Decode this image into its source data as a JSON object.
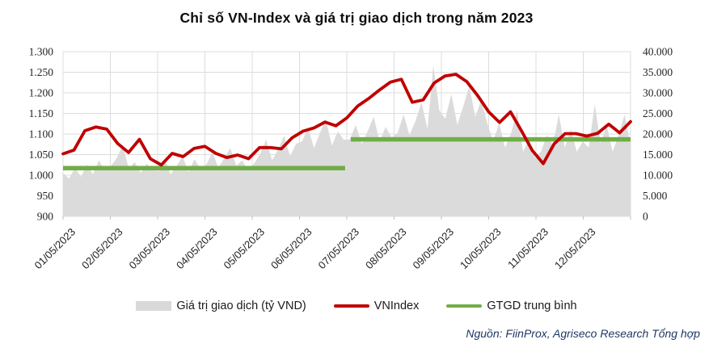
{
  "title": "Chỉ số VN-Index và giá trị giao dịch trong năm 2023",
  "source_note": "Nguồn: FiinProx, Agriseco Research Tổng hợp",
  "colors": {
    "vnindex_line": "#c00000",
    "volume_area": "#dbdbdb",
    "average_line": "#70ad47",
    "gridline": "#dcdcdc",
    "axis_text": "#1f1f1f",
    "source_text": "#203864"
  },
  "legend": [
    {
      "label": "Giá trị giao dịch (tỷ VND)",
      "type": "area",
      "color": "#d9d9d9"
    },
    {
      "label": "VNIndex",
      "type": "line",
      "color": "#c00000"
    },
    {
      "label": "GTGD trung bình",
      "type": "line",
      "color": "#70ad47"
    }
  ],
  "chart_data": {
    "type": "combo",
    "title": "Chỉ số VN-Index và giá trị giao dịch trong năm 2023",
    "x_axis": {
      "tick_labels": [
        "01/05/2023",
        "02/05/2023",
        "03/05/2023",
        "04/05/2023",
        "05/05/2023",
        "06/05/2023",
        "07/05/2023",
        "08/05/2023",
        "09/05/2023",
        "10/05/2023",
        "11/05/2023",
        "12/05/2023"
      ],
      "label_rotation_deg": -45
    },
    "y_axis_left": {
      "tick_labels": [
        "1.300",
        "1.250",
        "1.200",
        "1.150",
        "1.100",
        "1.050",
        "1.000",
        "950",
        "900"
      ],
      "min": 900,
      "max": 1300,
      "applies_to": "VNIndex"
    },
    "y_axis_right": {
      "tick_labels": [
        "40.000",
        "35.000",
        "30.000",
        "25.000",
        "20.000",
        "15.000",
        "10.000",
        "5.000",
        "0"
      ],
      "min": 0,
      "max": 40000,
      "applies_to": "Giá trị giao dịch (tỷ VND)"
    },
    "gridlines": {
      "horizontal": true,
      "vertical": true
    },
    "legend_position": "bottom",
    "series": [
      {
        "name": "Giá trị giao dịch (tỷ VND)",
        "type": "area",
        "axis": "right",
        "color": "#dbdbdb",
        "values": [
          10500,
          9200,
          11800,
          9600,
          12600,
          10200,
          13600,
          11200,
          12200,
          14200,
          17400,
          11600,
          13200,
          10600,
          12800,
          11300,
          11000,
          13600,
          10200,
          12200,
          14600,
          10800,
          13900,
          11600,
          12600,
          15600,
          11800,
          14200,
          16600,
          12300,
          13600,
          11100,
          12900,
          15200,
          18600,
          13600,
          16200,
          19600,
          14600,
          17600,
          18200,
          21600,
          16600,
          20200,
          23600,
          17200,
          20600,
          18600,
          18700,
          22200,
          17600,
          20700,
          24200,
          18200,
          21700,
          19200,
          20200,
          24700,
          19700,
          23200,
          27700,
          21200,
          36600,
          25700,
          23700,
          29700,
          22200,
          26700,
          31700,
          24200,
          28200,
          22700,
          18200,
          22700,
          16700,
          20200,
          25700,
          15700,
          18700,
          14200,
          15700,
          19700,
          17200,
          24700,
          16700,
          21200,
          15700,
          18200,
          16700,
          27200,
          17700,
          22200,
          15700,
          19700,
          24700,
          17200
        ]
      },
      {
        "name": "VNIndex",
        "type": "line",
        "axis": "left",
        "color": "#c00000",
        "values": [
          1052,
          1061,
          1108,
          1117,
          1112,
          1077,
          1055,
          1087,
          1040,
          1025,
          1053,
          1045,
          1065,
          1070,
          1053,
          1043,
          1049,
          1040,
          1067,
          1067,
          1064,
          1091,
          1107,
          1115,
          1129,
          1120,
          1139,
          1168,
          1186,
          1207,
          1226,
          1233,
          1177,
          1183,
          1224,
          1241,
          1245,
          1227,
          1193,
          1154,
          1128,
          1154,
          1108,
          1060,
          1028,
          1076,
          1101,
          1101,
          1095,
          1102,
          1124,
          1103,
          1130
        ]
      },
      {
        "name": "GTGD trung bình",
        "type": "segments",
        "axis": "right",
        "color": "#70ad47",
        "segments": [
          {
            "x_start_frac": 0.0,
            "x_end_frac": 0.497,
            "value": 11700
          },
          {
            "x_start_frac": 0.507,
            "x_end_frac": 1.0,
            "value": 18700
          }
        ]
      }
    ]
  }
}
